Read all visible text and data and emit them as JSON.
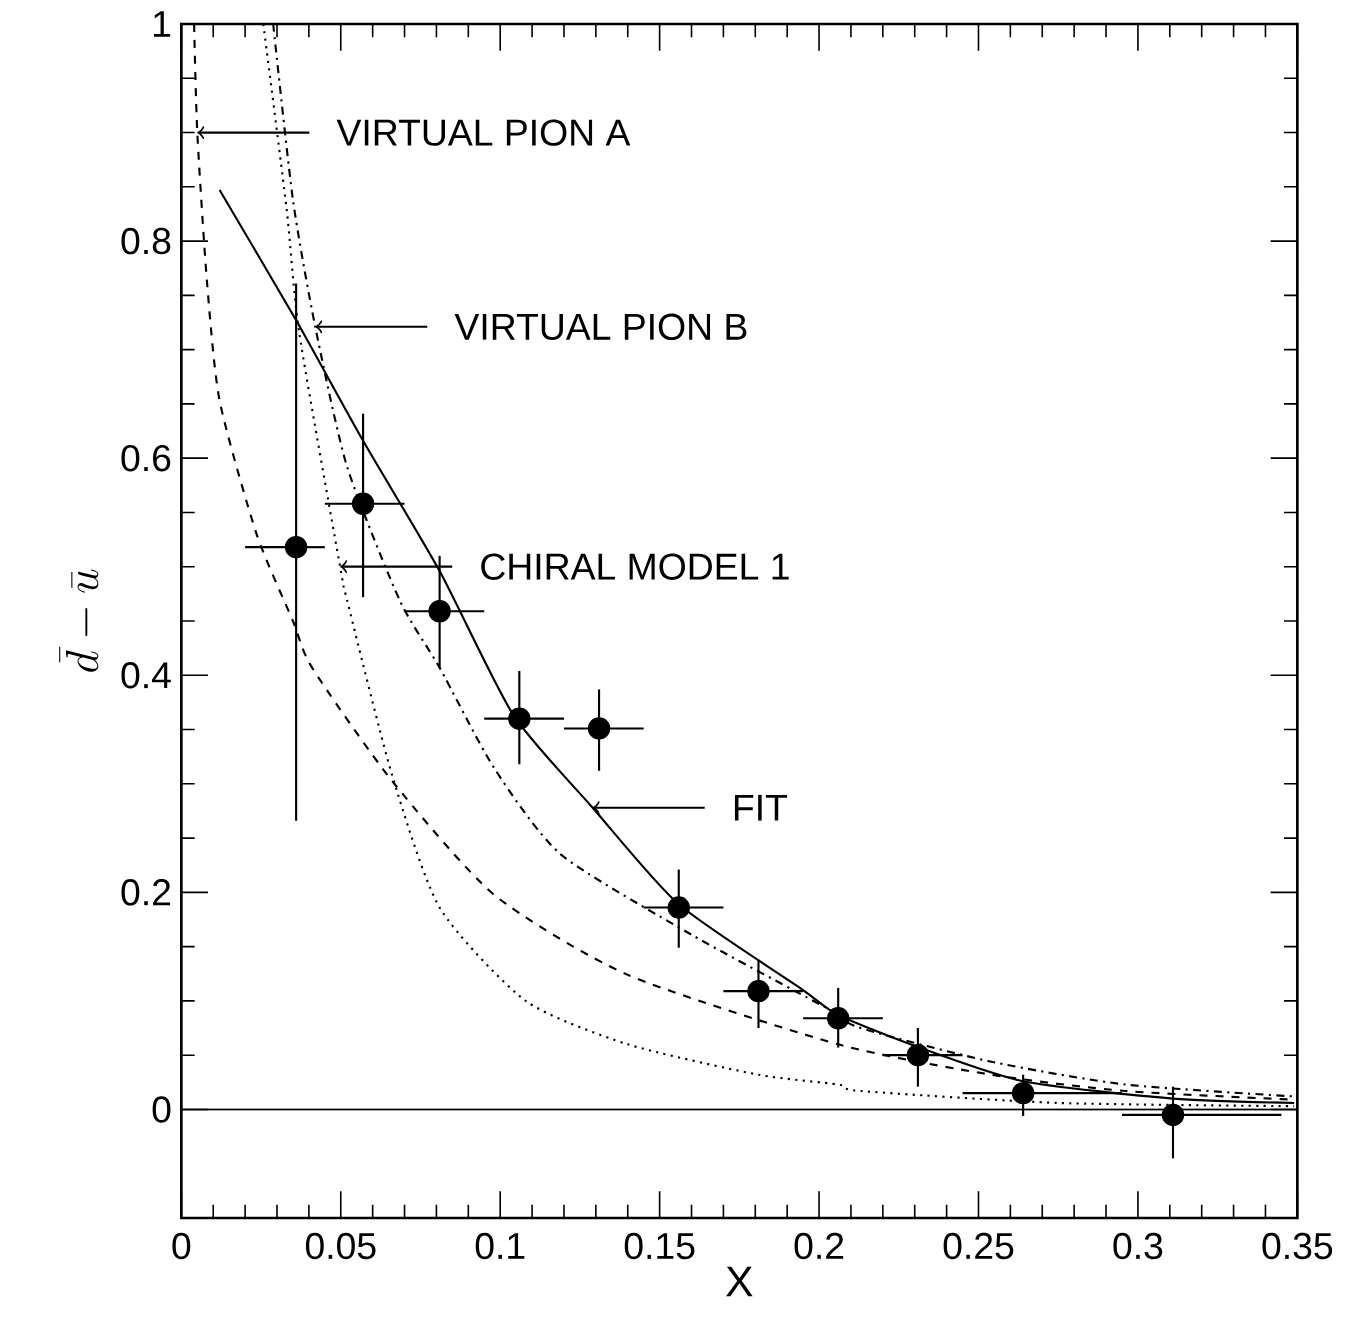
{
  "chart_data": {
    "type": "scatter",
    "xlabel": "X",
    "ylabel": "\\bar{d} - \\bar{u}",
    "xlim": [
      0,
      0.35
    ],
    "ylim": [
      -0.1,
      1
    ],
    "xticks": [
      0,
      0.05,
      0.1,
      0.15,
      0.2,
      0.25,
      0.3,
      0.35
    ],
    "yticks": [
      0,
      0.2,
      0.4,
      0.6,
      0.8,
      1
    ],
    "grid": false,
    "ref_lines": [
      {
        "axis": "y",
        "value": 0,
        "color": "#000000",
        "line_style": "solid"
      }
    ],
    "annotations": [
      "VIRTUAL PION A",
      "VIRTUAL PION B",
      "CHIRAL MODEL 1",
      "FIT"
    ],
    "series": [
      {
        "color": "#000000",
        "marker": "circle",
        "x": [
          0.036,
          0.057,
          0.081,
          0.106,
          0.131,
          0.156,
          0.181,
          0.206,
          0.231,
          0.264,
          0.311
        ],
        "values": [
          0.518,
          0.558,
          0.459,
          0.36,
          0.351,
          0.186,
          0.109,
          0.084,
          0.05,
          0.015,
          -0.005
        ],
        "errors": [
          [
            0.266,
            0.761
          ],
          [
            0.472,
            0.641
          ],
          [
            0.407,
            0.51
          ],
          [
            0.318,
            0.404
          ],
          [
            0.312,
            0.387
          ],
          [
            0.149,
            0.221
          ],
          [
            0.075,
            0.138
          ],
          [
            0.057,
            0.112
          ],
          [
            0.021,
            0.075
          ],
          [
            -0.006,
            0.032
          ],
          [
            -0.045,
            0.021
          ]
        ],
        "xerrors": [
          [
            0.02,
            0.045
          ],
          [
            0.045,
            0.07
          ],
          [
            0.07,
            0.095
          ],
          [
            0.095,
            0.12
          ],
          [
            0.12,
            0.145
          ],
          [
            0.145,
            0.17
          ],
          [
            0.17,
            0.195
          ],
          [
            0.195,
            0.22
          ],
          [
            0.22,
            0.245
          ],
          [
            0.245,
            0.295
          ],
          [
            0.295,
            0.345
          ]
        ]
      },
      {
        "type": "line",
        "color": "#000000",
        "marker": "none",
        "line_style": "solid",
        "x": [
          0.012,
          0.036,
          0.057,
          0.081,
          0.104,
          0.129,
          0.156,
          0.194,
          0.206,
          0.2315,
          0.264,
          0.311,
          0.349
        ],
        "values": [
          0.847,
          0.727,
          0.616,
          0.496,
          0.364,
          0.278,
          0.189,
          0.112,
          0.087,
          0.057,
          0.026,
          0.01,
          0.006
        ]
      },
      {
        "type": "line",
        "color": "#000000",
        "marker": "none",
        "line_style": "dashed",
        "x": [
          0.004,
          0.005,
          0.008,
          0.012,
          0.0236,
          0.035,
          0.041,
          0.066,
          0.098,
          0.14,
          0.206,
          0.254,
          0.296,
          0.349
        ],
        "values": [
          1,
          0.9,
          0.764,
          0.653,
          0.53,
          0.45,
          0.407,
          0.303,
          0.198,
          0.124,
          0.06,
          0.032,
          0.017,
          0.009
        ]
      },
      {
        "type": "line",
        "color": "#000000",
        "marker": "none",
        "line_style": "dashdot",
        "x": [
          0.0288,
          0.035,
          0.042,
          0.052,
          0.0685,
          0.081,
          0.098,
          0.119,
          0.16,
          0.202,
          0.213,
          0.254,
          0.296,
          0.349
        ],
        "values": [
          1,
          0.838,
          0.721,
          0.592,
          0.469,
          0.407,
          0.315,
          0.235,
          0.161,
          0.094,
          0.075,
          0.044,
          0.023,
          0.012
        ]
      },
      {
        "type": "line",
        "color": "#000000",
        "marker": "none",
        "line_style": "dotted",
        "x": [
          0.0257,
          0.033,
          0.037,
          0.0498,
          0.052,
          0.066,
          0.081,
          0.108,
          0.14,
          0.181,
          0.206,
          0.213,
          0.275,
          0.349
        ],
        "values": [
          1,
          0.83,
          0.715,
          0.5,
          0.469,
          0.309,
          0.186,
          0.1,
          0.06,
          0.032,
          0.023,
          0.017,
          0.006,
          0.003
        ]
      }
    ]
  }
}
